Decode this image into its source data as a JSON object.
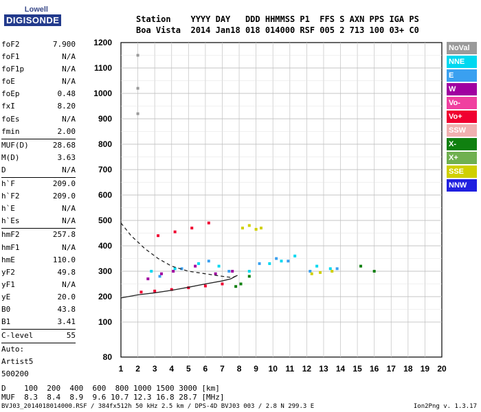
{
  "logo": {
    "top": "Lowell",
    "bottom": "DIGISONDE"
  },
  "header": {
    "line1": "Station    YYYY DAY   DDD HHMMSS P1  FFS S AXN PPS IGA PS",
    "line2": "Boa Vista  2014 Jan18 018 014000 RSF 005 2 713 100 03+ C0"
  },
  "params": [
    {
      "k": "foF2",
      "v": "7.900"
    },
    {
      "k": "foF1",
      "v": "N/A"
    },
    {
      "k": "foF1p",
      "v": "N/A"
    },
    {
      "k": "foE",
      "v": "N/A"
    },
    {
      "k": "foEp",
      "v": "0.48"
    },
    {
      "k": "fxI",
      "v": "8.20"
    },
    {
      "k": "foEs",
      "v": "N/A"
    },
    {
      "k": "fmin",
      "v": "2.00"
    },
    {
      "k": "MUF(D)",
      "v": "28.68"
    },
    {
      "k": "M(D)",
      "v": "3.63"
    },
    {
      "k": "D",
      "v": "N/A"
    },
    {
      "k": "h`F",
      "v": "209.0"
    },
    {
      "k": "h`F2",
      "v": "209.0"
    },
    {
      "k": "h`E",
      "v": "N/A"
    },
    {
      "k": "h`Es",
      "v": "N/A"
    },
    {
      "k": "hmF2",
      "v": "257.8"
    },
    {
      "k": "hmF1",
      "v": "N/A"
    },
    {
      "k": "hmE",
      "v": "110.0"
    },
    {
      "k": "yF2",
      "v": "49.8"
    },
    {
      "k": "yF1",
      "v": "N/A"
    },
    {
      "k": "yE",
      "v": "20.0"
    },
    {
      "k": "B0",
      "v": "43.8"
    },
    {
      "k": "B1",
      "v": "3.41"
    },
    {
      "k": "C-level",
      "v": "55"
    }
  ],
  "auto": [
    "Auto:",
    "Artist5",
    "500200"
  ],
  "legend": [
    {
      "label": "NoVal",
      "color": "#9a9a9a"
    },
    {
      "label": "NNE",
      "color": "#00d8f0"
    },
    {
      "label": "E",
      "color": "#3aa0f0"
    },
    {
      "label": "W",
      "color": "#a000a0"
    },
    {
      "label": "Vo-",
      "color": "#f040a0"
    },
    {
      "label": "Vo+",
      "color": "#f00030"
    },
    {
      "label": "SSW",
      "color": "#f0b0b0"
    },
    {
      "label": "X-",
      "color": "#108010"
    },
    {
      "label": "X+",
      "color": "#70b050"
    },
    {
      "label": "SSE",
      "color": "#d0d000"
    },
    {
      "label": "NNW",
      "color": "#2020e0"
    }
  ],
  "muf_table": {
    "row1": "D    100  200  400  600  800 1000 1500 3000 [km]",
    "row2": "MUF  8.3  8.4  8.9  9.6 10.7 12.3 16.8 28.7 [MHz]"
  },
  "footer": "BVJ03_2014018014000.RSF / 384fx512h 50 kHz 2.5 km / DPS-4D BVJ03 003 / 2.8 N 299.3 E",
  "version": "Ion2Png v. 1.3.17",
  "chart_data": {
    "type": "scatter",
    "title": "",
    "xlabel": "",
    "ylabel": "",
    "xlim": [
      1,
      20
    ],
    "ylim": [
      80,
      1200
    ],
    "x_ticks": [
      1,
      2,
      3,
      4,
      5,
      6,
      7,
      8,
      9,
      10,
      11,
      12,
      13,
      14,
      15,
      16,
      17,
      18,
      19,
      20
    ],
    "y_ticks": [
      80,
      100,
      200,
      300,
      400,
      500,
      600,
      700,
      800,
      900,
      1000,
      1100,
      1200
    ],
    "grid": true,
    "legend_placement": "right",
    "series": [
      {
        "name": "NNE",
        "color": "#00d8f0",
        "x": [
          2.8,
          4.2,
          5.6,
          6.8,
          8.6,
          9.8,
          10.5,
          11.3,
          12.6,
          13.4
        ],
        "y": [
          300,
          310,
          330,
          320,
          300,
          330,
          340,
          360,
          320,
          310
        ]
      },
      {
        "name": "E",
        "color": "#3aa0f0",
        "x": [
          3.3,
          4.6,
          6.2,
          7.4,
          9.2,
          10.2,
          10.9,
          12.2,
          13.8
        ],
        "y": [
          280,
          310,
          340,
          300,
          330,
          350,
          340,
          300,
          310
        ]
      },
      {
        "name": "W",
        "color": "#a000a0",
        "x": [
          2.6,
          3.4,
          4.1,
          5.4,
          6.6,
          7.6
        ],
        "y": [
          270,
          290,
          300,
          320,
          290,
          300
        ]
      },
      {
        "name": "Vo+",
        "color": "#f00030",
        "x": [
          2.2,
          3.0,
          4.0,
          5.0,
          6.0,
          7.0,
          3.2,
          4.2,
          5.2,
          6.2
        ],
        "y": [
          218,
          222,
          228,
          235,
          242,
          250,
          440,
          455,
          470,
          490
        ]
      },
      {
        "name": "SSE",
        "color": "#d0d000",
        "x": [
          8.2,
          8.6,
          9.0,
          9.3,
          12.3,
          12.8,
          13.5
        ],
        "y": [
          470,
          480,
          465,
          470,
          290,
          295,
          300
        ]
      },
      {
        "name": "X-",
        "color": "#108010",
        "x": [
          7.8,
          8.1,
          8.6,
          15.2,
          16.0
        ],
        "y": [
          240,
          250,
          280,
          320,
          300
        ]
      },
      {
        "name": "NoVal",
        "color": "#9a9a9a",
        "x": [
          2.0,
          2.0,
          2.0
        ],
        "y": [
          1150,
          1020,
          920
        ]
      }
    ],
    "traces": [
      {
        "name": "profile-solid",
        "x": [
          1,
          2,
          3,
          4,
          5,
          6,
          7,
          7.5,
          7.9
        ],
        "y": [
          195,
          207,
          215,
          225,
          237,
          250,
          262,
          270,
          284
        ]
      },
      {
        "name": "profile-dashed",
        "x": [
          1,
          1.6,
          2.4,
          3.2,
          4.0,
          5.0,
          6.0,
          7.0,
          7.6,
          7.9
        ],
        "y": [
          490,
          440,
          390,
          350,
          320,
          300,
          290,
          280,
          275,
          284
        ]
      }
    ]
  }
}
